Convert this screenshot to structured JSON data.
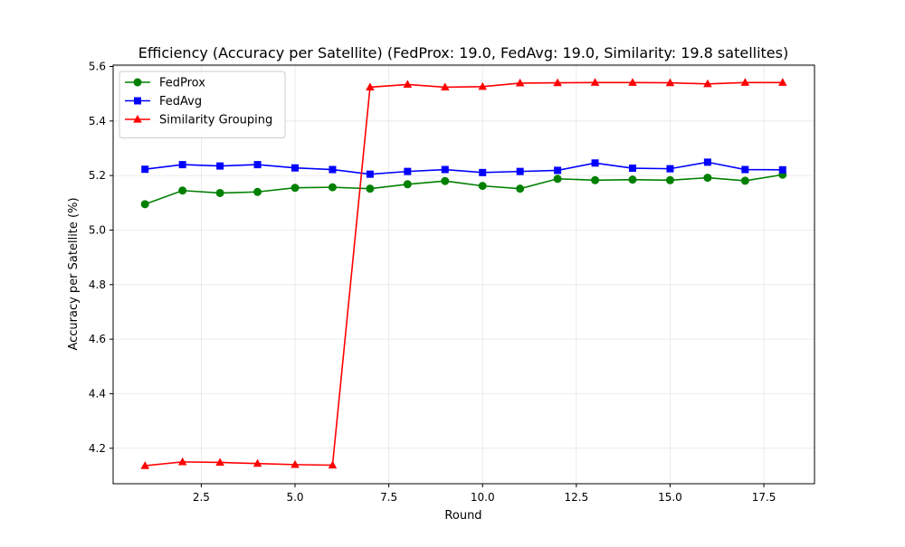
{
  "chart_data": {
    "type": "line",
    "title": "Efficiency (Accuracy per Satellite) (FedProx: 19.0, FedAvg: 19.0, Similarity: 19.8 satellites)",
    "xlabel": "Round",
    "ylabel": "Accuracy per Satellite (%)",
    "xlim": [
      0.15,
      18.85
    ],
    "ylim": [
      4.07,
      5.605
    ],
    "x_ticks": [
      2.5,
      5.0,
      7.5,
      10.0,
      12.5,
      15.0,
      17.5
    ],
    "y_ticks": [
      4.2,
      4.4,
      4.6,
      4.8,
      5.0,
      5.2,
      5.4,
      5.6
    ],
    "grid": true,
    "legend_position": "upper-left",
    "x": [
      1,
      2,
      3,
      4,
      5,
      6,
      7,
      8,
      9,
      10,
      11,
      12,
      13,
      14,
      15,
      16,
      17,
      18
    ],
    "series": [
      {
        "name": "FedProx",
        "color": "#008000",
        "marker": "circle",
        "values": [
          5.095,
          5.145,
          5.136,
          5.14,
          5.155,
          5.157,
          5.152,
          5.168,
          5.18,
          5.162,
          5.152,
          5.188,
          5.183,
          5.185,
          5.183,
          5.192,
          5.181,
          5.203
        ]
      },
      {
        "name": "FedAvg",
        "color": "#0000ff",
        "marker": "square",
        "values": [
          5.223,
          5.24,
          5.235,
          5.24,
          5.228,
          5.222,
          5.205,
          5.215,
          5.222,
          5.211,
          5.215,
          5.219,
          5.246,
          5.227,
          5.225,
          5.249,
          5.222,
          5.221
        ]
      },
      {
        "name": "Similarity Grouping",
        "color": "#ff0000",
        "marker": "triangle",
        "values": [
          4.136,
          4.15,
          4.148,
          4.144,
          4.14,
          4.138,
          5.524,
          5.534,
          5.524,
          5.526,
          5.539,
          5.54,
          5.541,
          5.541,
          5.54,
          5.536,
          5.541,
          5.541
        ]
      }
    ]
  }
}
